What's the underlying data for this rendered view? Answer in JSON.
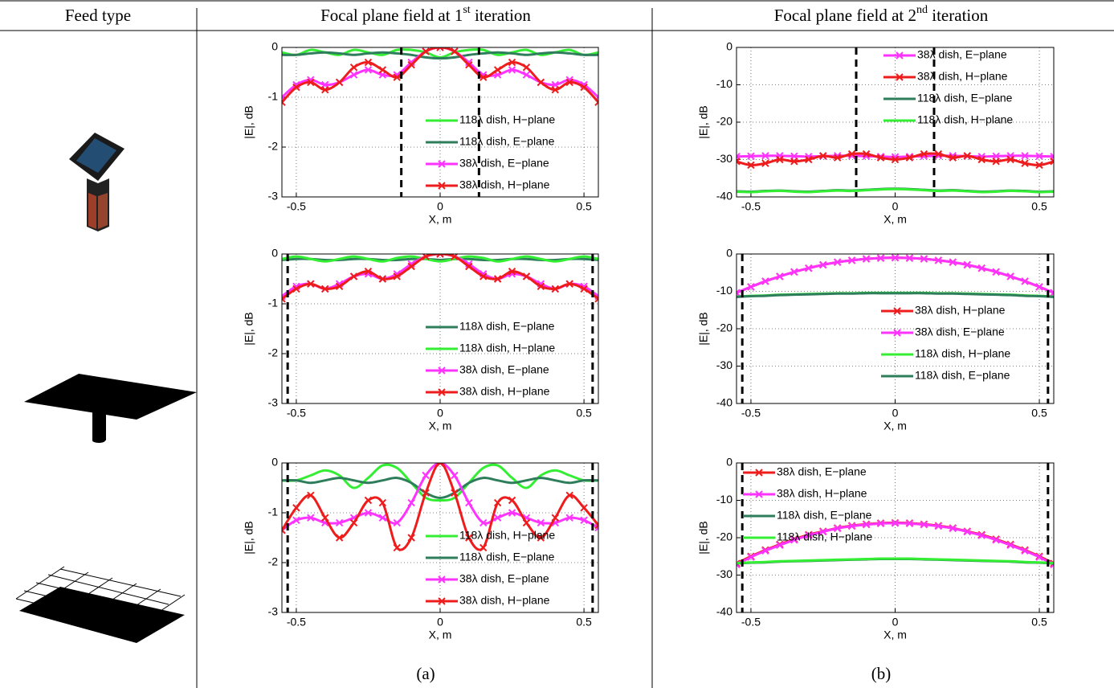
{
  "table": {
    "headers": [
      "Feed type",
      {
        "text": "Focal plane field at 1",
        "sup": "st",
        "tail": " iteration"
      },
      {
        "text": "Focal plane field at 2",
        "sup": "nd",
        "tail": " iteration"
      }
    ],
    "captions": [
      "(a)",
      "(b)"
    ]
  },
  "chart_data": [
    {
      "type": "line",
      "xlabel": "X, m",
      "ylabel": "|E|, dB",
      "grid": true,
      "legend": "lower right",
      "vlines": [
        -0.135,
        0.135
      ],
      "xlim": [
        -0.55,
        0.55
      ],
      "xticks": [
        -0.5,
        0,
        0.5
      ],
      "ylim": [
        -3,
        0
      ],
      "yticks": [
        -3,
        -2,
        -1,
        0
      ],
      "x": [
        -0.55,
        -0.5,
        -0.45,
        -0.4,
        -0.35,
        -0.3,
        -0.25,
        -0.2,
        -0.15,
        -0.1,
        -0.05,
        0,
        0.05,
        0.1,
        0.15,
        0.2,
        0.25,
        0.3,
        0.35,
        0.4,
        0.45,
        0.5,
        0.55
      ],
      "series": [
        {
          "name": "118λ dish, H−plane",
          "color": "#33ee33",
          "values": [
            -0.1,
            -0.15,
            -0.05,
            -0.1,
            -0.15,
            -0.05,
            -0.1,
            -0.15,
            -0.05,
            -0.05,
            -0.1,
            -0.2,
            -0.1,
            -0.05,
            -0.05,
            -0.15,
            -0.1,
            -0.05,
            -0.15,
            -0.1,
            -0.05,
            -0.15,
            -0.1
          ]
        },
        {
          "name": "118λ dish, E−plane",
          "color": "#2e7d5b",
          "values": [
            -0.15,
            -0.15,
            -0.12,
            -0.1,
            -0.12,
            -0.15,
            -0.12,
            -0.1,
            -0.12,
            -0.15,
            -0.2,
            -0.22,
            -0.2,
            -0.15,
            -0.12,
            -0.1,
            -0.12,
            -0.15,
            -0.12,
            -0.1,
            -0.12,
            -0.15,
            -0.15
          ]
        },
        {
          "name": "38λ dish, E−plane",
          "color": "#ff33ff",
          "marker": "x",
          "values": [
            -1.0,
            -0.75,
            -0.65,
            -0.75,
            -0.7,
            -0.55,
            -0.45,
            -0.55,
            -0.55,
            -0.3,
            -0.08,
            0,
            -0.08,
            -0.3,
            -0.55,
            -0.55,
            -0.45,
            -0.55,
            -0.7,
            -0.75,
            -0.65,
            -0.75,
            -1.0
          ]
        },
        {
          "name": "38λ dish, H−plane",
          "color": "#ee1c1c",
          "marker": "x",
          "values": [
            -1.1,
            -0.8,
            -0.7,
            -0.85,
            -0.7,
            -0.4,
            -0.3,
            -0.45,
            -0.6,
            -0.35,
            -0.08,
            0,
            -0.08,
            -0.35,
            -0.6,
            -0.45,
            -0.3,
            -0.4,
            -0.7,
            -0.85,
            -0.7,
            -0.8,
            -1.1
          ]
        }
      ]
    },
    {
      "type": "line",
      "xlabel": "X, m",
      "ylabel": "|E|, dB",
      "grid": true,
      "legend": "upper right",
      "vlines": [
        -0.135,
        0.135
      ],
      "xlim": [
        -0.55,
        0.55
      ],
      "xticks": [
        -0.5,
        0,
        0.5
      ],
      "ylim": [
        -40,
        0
      ],
      "yticks": [
        -40,
        -30,
        -20,
        -10,
        0
      ],
      "x": [
        -0.55,
        -0.5,
        -0.45,
        -0.4,
        -0.35,
        -0.3,
        -0.25,
        -0.2,
        -0.15,
        -0.1,
        -0.05,
        0,
        0.05,
        0.1,
        0.15,
        0.2,
        0.25,
        0.3,
        0.35,
        0.4,
        0.45,
        0.5,
        0.55
      ],
      "series": [
        {
          "name": "38λ dish, E−plane",
          "color": "#ff33ff",
          "marker": "x",
          "values": [
            -29.2,
            -29.1,
            -29,
            -29,
            -29.1,
            -29.2,
            -29.1,
            -29,
            -29,
            -29.1,
            -29.2,
            -29.3,
            -29.2,
            -29.1,
            -29,
            -29,
            -29.1,
            -29.2,
            -29.1,
            -29,
            -29,
            -29.1,
            -29.2
          ]
        },
        {
          "name": "38λ dish, H−plane",
          "color": "#ee1c1c",
          "marker": "x",
          "values": [
            -30.5,
            -31.5,
            -31,
            -30,
            -30.5,
            -30,
            -29,
            -29.5,
            -28.5,
            -28.5,
            -29.5,
            -30,
            -29.5,
            -28.5,
            -28.5,
            -29.5,
            -29,
            -30,
            -30.5,
            -30,
            -31,
            -31.5,
            -30.5
          ]
        },
        {
          "name": "118λ dish, E−plane",
          "color": "#2e7d5b",
          "values": [
            -38.5,
            -38.6,
            -38.4,
            -38.3,
            -38.5,
            -38.6,
            -38.4,
            -38.2,
            -38.3,
            -38.1,
            -37.9,
            -37.8,
            -37.9,
            -38.1,
            -38.3,
            -38.2,
            -38.4,
            -38.6,
            -38.5,
            -38.3,
            -38.4,
            -38.6,
            -38.5
          ]
        },
        {
          "name": "118λ dish, H−plane",
          "color": "#33ee33",
          "values": [
            -38.6,
            -38.7,
            -38.5,
            -38.4,
            -38.6,
            -38.7,
            -38.5,
            -38.3,
            -38.4,
            -38.2,
            -38.0,
            -37.9,
            -38.0,
            -38.2,
            -38.4,
            -38.3,
            -38.5,
            -38.7,
            -38.6,
            -38.4,
            -38.5,
            -38.7,
            -38.6
          ]
        }
      ]
    },
    {
      "type": "line",
      "xlabel": "X, m",
      "ylabel": "|E|, dB",
      "grid": true,
      "legend": "lower right",
      "vlines": [
        -0.53,
        0.53
      ],
      "xlim": [
        -0.55,
        0.55
      ],
      "xticks": [
        -0.5,
        0,
        0.5
      ],
      "ylim": [
        -3,
        0
      ],
      "yticks": [
        -3,
        -2,
        -1,
        0
      ],
      "x": [
        -0.55,
        -0.5,
        -0.45,
        -0.4,
        -0.35,
        -0.3,
        -0.25,
        -0.2,
        -0.15,
        -0.1,
        -0.05,
        0,
        0.05,
        0.1,
        0.15,
        0.2,
        0.25,
        0.3,
        0.35,
        0.4,
        0.45,
        0.5,
        0.55
      ],
      "series": [
        {
          "name": "118λ dish, E−plane",
          "color": "#2e7d5b",
          "values": [
            -0.12,
            -0.1,
            -0.1,
            -0.12,
            -0.12,
            -0.1,
            -0.1,
            -0.12,
            -0.12,
            -0.1,
            -0.1,
            -0.12,
            -0.1,
            -0.1,
            -0.12,
            -0.12,
            -0.1,
            -0.1,
            -0.12,
            -0.12,
            -0.1,
            -0.1,
            -0.12
          ]
        },
        {
          "name": "118λ dish, H−plane",
          "color": "#33ee33",
          "values": [
            -0.1,
            -0.05,
            -0.1,
            -0.15,
            -0.1,
            -0.05,
            -0.1,
            -0.15,
            -0.08,
            -0.05,
            -0.1,
            -0.15,
            -0.1,
            -0.05,
            -0.08,
            -0.15,
            -0.1,
            -0.05,
            -0.1,
            -0.15,
            -0.1,
            -0.05,
            -0.1
          ]
        },
        {
          "name": "38λ dish, E−plane",
          "color": "#ff33ff",
          "marker": "x",
          "values": [
            -0.85,
            -0.65,
            -0.6,
            -0.7,
            -0.6,
            -0.45,
            -0.4,
            -0.5,
            -0.4,
            -0.2,
            -0.05,
            0,
            -0.05,
            -0.2,
            -0.4,
            -0.5,
            -0.4,
            -0.45,
            -0.6,
            -0.7,
            -0.6,
            -0.65,
            -0.85
          ]
        },
        {
          "name": "38λ dish, H−plane",
          "color": "#ee1c1c",
          "marker": "x",
          "values": [
            -0.9,
            -0.7,
            -0.6,
            -0.7,
            -0.65,
            -0.45,
            -0.35,
            -0.5,
            -0.45,
            -0.25,
            -0.05,
            0,
            -0.05,
            -0.25,
            -0.45,
            -0.5,
            -0.35,
            -0.45,
            -0.65,
            -0.7,
            -0.6,
            -0.7,
            -0.9
          ]
        }
      ]
    },
    {
      "type": "line",
      "xlabel": "X, m",
      "ylabel": "|E|, dB",
      "grid": true,
      "legend": "center right",
      "vlines": [
        -0.53,
        0.53
      ],
      "xlim": [
        -0.55,
        0.55
      ],
      "xticks": [
        -0.5,
        0,
        0.5
      ],
      "ylim": [
        -40,
        0
      ],
      "yticks": [
        -40,
        -30,
        -20,
        -10,
        0
      ],
      "x": [
        -0.55,
        -0.5,
        -0.45,
        -0.4,
        -0.35,
        -0.3,
        -0.25,
        -0.2,
        -0.15,
        -0.1,
        -0.05,
        0,
        0.05,
        0.1,
        0.15,
        0.2,
        0.25,
        0.3,
        0.35,
        0.4,
        0.45,
        0.5,
        0.55
      ],
      "series": [
        {
          "name": "38λ dish, H−plane",
          "color": "#ee1c1c",
          "marker": "x",
          "values": [
            -10.4,
            -8.8,
            -7.3,
            -6.0,
            -4.8,
            -3.8,
            -2.9,
            -2.2,
            -1.7,
            -1.3,
            -1.1,
            -1.0,
            -1.1,
            -1.3,
            -1.7,
            -2.2,
            -2.9,
            -3.8,
            -4.8,
            -6.0,
            -7.3,
            -8.8,
            -10.4
          ]
        },
        {
          "name": "38λ dish, E−plane",
          "color": "#ff33ff",
          "marker": "x",
          "values": [
            -10.4,
            -8.8,
            -7.3,
            -6.0,
            -4.8,
            -3.8,
            -2.9,
            -2.2,
            -1.7,
            -1.3,
            -1.1,
            -1.0,
            -1.1,
            -1.3,
            -1.7,
            -2.2,
            -2.9,
            -3.8,
            -4.8,
            -6.0,
            -7.3,
            -8.8,
            -10.4
          ]
        },
        {
          "name": "118λ dish, H−plane",
          "color": "#33ee33",
          "values": [
            -11.4,
            -11.2,
            -11.1,
            -10.9,
            -10.8,
            -10.7,
            -10.6,
            -10.5,
            -10.5,
            -10.4,
            -10.4,
            -10.4,
            -10.4,
            -10.4,
            -10.5,
            -10.5,
            -10.6,
            -10.7,
            -10.8,
            -10.9,
            -11.1,
            -11.2,
            -11.4
          ]
        },
        {
          "name": "118λ dish, E−plane",
          "color": "#2e7d5b",
          "values": [
            -11.5,
            -11.3,
            -11.2,
            -11.0,
            -10.9,
            -10.8,
            -10.7,
            -10.6,
            -10.6,
            -10.5,
            -10.5,
            -10.5,
            -10.5,
            -10.5,
            -10.6,
            -10.6,
            -10.7,
            -10.8,
            -10.9,
            -11.0,
            -11.2,
            -11.3,
            -11.5
          ]
        }
      ]
    },
    {
      "type": "line",
      "xlabel": "X, m",
      "ylabel": "|E|, dB",
      "grid": true,
      "legend": "lower right",
      "vlines": [
        -0.53,
        0.53
      ],
      "xlim": [
        -0.55,
        0.55
      ],
      "xticks": [
        -0.5,
        0,
        0.5
      ],
      "ylim": [
        -3,
        0
      ],
      "yticks": [
        -3,
        -2,
        -1,
        0
      ],
      "x": [
        -0.55,
        -0.5,
        -0.45,
        -0.4,
        -0.35,
        -0.3,
        -0.25,
        -0.2,
        -0.15,
        -0.1,
        -0.05,
        0,
        0.05,
        0.1,
        0.15,
        0.2,
        0.25,
        0.3,
        0.35,
        0.4,
        0.45,
        0.5,
        0.55
      ],
      "series": [
        {
          "name": "118λ dish, H−plane",
          "color": "#33ee33",
          "values": [
            -0.35,
            -0.35,
            -0.25,
            -0.15,
            -0.25,
            -0.5,
            -0.3,
            -0.05,
            -0.1,
            -0.4,
            -0.7,
            -0.75,
            -0.7,
            -0.4,
            -0.1,
            -0.05,
            -0.3,
            -0.5,
            -0.25,
            -0.15,
            -0.25,
            -0.35,
            -0.35
          ]
        },
        {
          "name": "118λ dish, E−plane",
          "color": "#2e7d5b",
          "values": [
            -0.35,
            -0.35,
            -0.4,
            -0.35,
            -0.3,
            -0.35,
            -0.4,
            -0.35,
            -0.3,
            -0.4,
            -0.6,
            -0.7,
            -0.6,
            -0.4,
            -0.3,
            -0.35,
            -0.4,
            -0.35,
            -0.3,
            -0.35,
            -0.4,
            -0.35,
            -0.35
          ]
        },
        {
          "name": "38λ dish, E−plane",
          "color": "#ff33ff",
          "marker": "x",
          "values": [
            -1.35,
            -1.15,
            -1.1,
            -1.2,
            -1.2,
            -1.1,
            -1.0,
            -1.1,
            -1.2,
            -0.8,
            -0.25,
            0,
            -0.25,
            -0.8,
            -1.2,
            -1.1,
            -1.0,
            -1.1,
            -1.2,
            -1.2,
            -1.1,
            -1.15,
            -1.3
          ]
        },
        {
          "name": "38λ dish, H−plane",
          "color": "#ee1c1c",
          "marker": "x",
          "values": [
            -1.35,
            -0.9,
            -0.65,
            -1.1,
            -1.5,
            -1.2,
            -0.75,
            -0.8,
            -1.7,
            -1.5,
            -0.6,
            0,
            -0.6,
            -1.5,
            -1.7,
            -0.8,
            -0.75,
            -1.2,
            -1.5,
            -1.1,
            -0.65,
            -0.9,
            -1.25
          ]
        }
      ]
    },
    {
      "type": "line",
      "xlabel": "X, m",
      "ylabel": "|E|, dB",
      "grid": true,
      "legend": "upper left",
      "vlines": [
        -0.53,
        0.53
      ],
      "xlim": [
        -0.55,
        0.55
      ],
      "xticks": [
        -0.5,
        0,
        0.5
      ],
      "ylim": [
        -40,
        0
      ],
      "yticks": [
        -40,
        -30,
        -20,
        -10,
        0
      ],
      "x": [
        -0.55,
        -0.5,
        -0.45,
        -0.4,
        -0.35,
        -0.3,
        -0.25,
        -0.2,
        -0.15,
        -0.1,
        -0.05,
        0,
        0.05,
        0.1,
        0.15,
        0.2,
        0.25,
        0.3,
        0.35,
        0.4,
        0.45,
        0.5,
        0.55
      ],
      "series": [
        {
          "name": "38λ dish, E−plane",
          "color": "#ee1c1c",
          "marker": "x",
          "values": [
            -26.9,
            -25,
            -23.3,
            -21.8,
            -20.4,
            -19.2,
            -18.3,
            -17.4,
            -16.8,
            -16.4,
            -16.1,
            -16,
            -16.1,
            -16.4,
            -16.8,
            -17.4,
            -18.3,
            -19.2,
            -20.4,
            -21.8,
            -23.3,
            -25,
            -26.9
          ]
        },
        {
          "name": "38λ dish, H−plane",
          "color": "#ff33ff",
          "marker": "x",
          "values": [
            -27.2,
            -25.2,
            -23.5,
            -22.0,
            -20.6,
            -19.4,
            -18.4,
            -17.5,
            -16.9,
            -16.5,
            -16.2,
            -16.1,
            -16.2,
            -16.5,
            -16.9,
            -17.5,
            -18.4,
            -19.4,
            -20.6,
            -22.0,
            -23.5,
            -25.2,
            -27.2
          ]
        },
        {
          "name": "118λ dish, E−plane",
          "color": "#2e7d5b",
          "values": [
            -26.9,
            -26.7,
            -26.6,
            -26.4,
            -26.3,
            -26.2,
            -26.1,
            -26.0,
            -25.9,
            -25.8,
            -25.7,
            -25.7,
            -25.7,
            -25.8,
            -25.9,
            -26.0,
            -26.1,
            -26.2,
            -26.3,
            -26.4,
            -26.6,
            -26.7,
            -26.9
          ]
        },
        {
          "name": "118λ dish, H−plane",
          "color": "#33ee33",
          "values": [
            -26.8,
            -26.6,
            -26.5,
            -26.3,
            -26.2,
            -26.1,
            -26.0,
            -25.9,
            -25.8,
            -25.7,
            -25.6,
            -25.6,
            -25.6,
            -25.7,
            -25.8,
            -25.9,
            -26.0,
            -26.1,
            -26.2,
            -26.3,
            -26.5,
            -26.6,
            -26.8
          ]
        }
      ]
    }
  ]
}
